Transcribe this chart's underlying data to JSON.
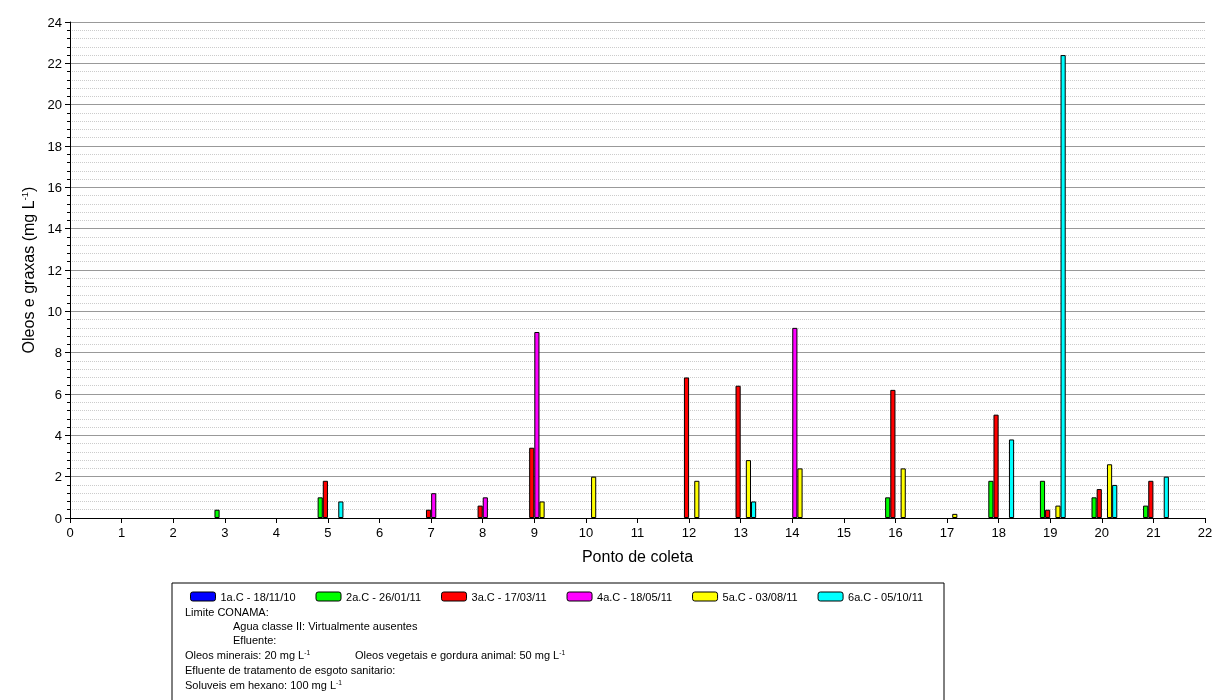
{
  "chart_data": {
    "type": "bar",
    "xlabel": "Ponto de coleta",
    "ylabel": "Oleos e graxas (mg L$^{-1}$)",
    "x": [
      3,
      5,
      7,
      8,
      9,
      10,
      12,
      13,
      14,
      16,
      17,
      18,
      19,
      20,
      21
    ],
    "xlim": [
      0,
      22
    ],
    "xticks": [
      0,
      1,
      2,
      3,
      4,
      5,
      6,
      7,
      8,
      9,
      10,
      11,
      12,
      13,
      14,
      15,
      16,
      17,
      18,
      19,
      20,
      21,
      22
    ],
    "ylim": [
      0,
      24
    ],
    "yticks": [
      0,
      2,
      4,
      6,
      8,
      10,
      12,
      14,
      16,
      18,
      20,
      22,
      24
    ],
    "grid": "y",
    "legend": "bottom",
    "series": [
      {
        "name": "1a.C - 18/11/10",
        "color": "#0000ff",
        "values": [
          null,
          null,
          null,
          null,
          null,
          null,
          null,
          null,
          null,
          null,
          null,
          null,
          null,
          null,
          null
        ]
      },
      {
        "name": "2a.C - 26/01/11",
        "color": "#00ff00",
        "values": [
          0.4,
          1.0,
          null,
          null,
          null,
          null,
          null,
          null,
          null,
          1.0,
          null,
          1.8,
          1.8,
          1.0,
          0.6
        ]
      },
      {
        "name": "3a.C - 17/03/11",
        "color": "#ff0000",
        "values": [
          null,
          1.8,
          0.4,
          0.6,
          3.4,
          null,
          6.8,
          6.4,
          null,
          6.2,
          null,
          5.0,
          0.4,
          1.4,
          1.8
        ]
      },
      {
        "name": "4a.C - 18/05/11",
        "color": "#ff00ff",
        "values": [
          null,
          null,
          1.2,
          1.0,
          9.0,
          null,
          null,
          null,
          9.2,
          null,
          null,
          null,
          null,
          null,
          null
        ]
      },
      {
        "name": "5a.C - 03/08/11",
        "color": "#ffff00",
        "values": [
          null,
          null,
          null,
          null,
          0.8,
          2.0,
          1.8,
          2.8,
          2.4,
          2.4,
          0.2,
          null,
          0.6,
          2.6,
          null
        ]
      },
      {
        "name": "6a.C - 05/10/11",
        "color": "#00ffff",
        "values": [
          null,
          0.8,
          null,
          null,
          null,
          null,
          null,
          0.8,
          null,
          null,
          null,
          3.8,
          22.4,
          1.6,
          2.0
        ]
      }
    ],
    "annotations": [
      "Limite CONAMA:",
      "Agua classe II: Virtualmente ausentes",
      "Efluente:",
      "Oleos minerais: 20 mg L$^{-1}$",
      "Oleos vegetais e gordura animal: 50 mg L$^{-1}$",
      "Efluente de tratamento de esgoto sanitario:",
      "Soluveis em hexano: 100 mg L$^{-1}$"
    ]
  }
}
